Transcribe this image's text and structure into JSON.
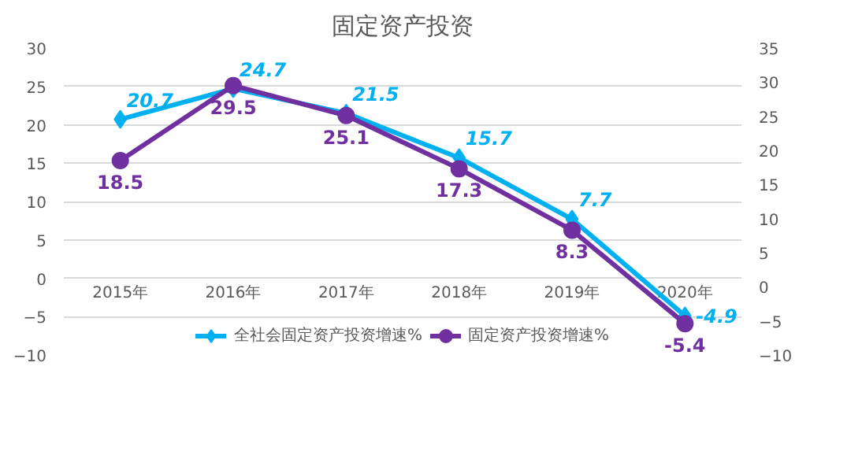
{
  "chart_data": {
    "type": "line",
    "title": "固定资产投资",
    "categories": [
      "2015年",
      "2016年",
      "2017年",
      "2018年",
      "2019年",
      "2020年"
    ],
    "series": [
      {
        "name": "全社会固定资产投资增速%",
        "color": "#00b0f0",
        "marker": "diamond",
        "values": [
          20.7,
          24.7,
          21.5,
          15.7,
          7.7,
          -4.9
        ]
      },
      {
        "name": "固定资产投资增速%",
        "color": "#7030a0",
        "marker": "circle",
        "axis": "y2",
        "values": [
          18.5,
          29.5,
          25.1,
          17.3,
          8.3,
          -5.4
        ]
      }
    ],
    "ylim": [
      -10,
      30
    ],
    "yticks": [
      -10,
      -5,
      0,
      5,
      10,
      15,
      20,
      25,
      30
    ],
    "y2lim": [
      -10,
      35
    ],
    "y2ticks": [
      -10,
      -5,
      0,
      5,
      10,
      15,
      20,
      25,
      30,
      35
    ],
    "grid": "y",
    "legend": "bottom",
    "data_labels": true
  }
}
